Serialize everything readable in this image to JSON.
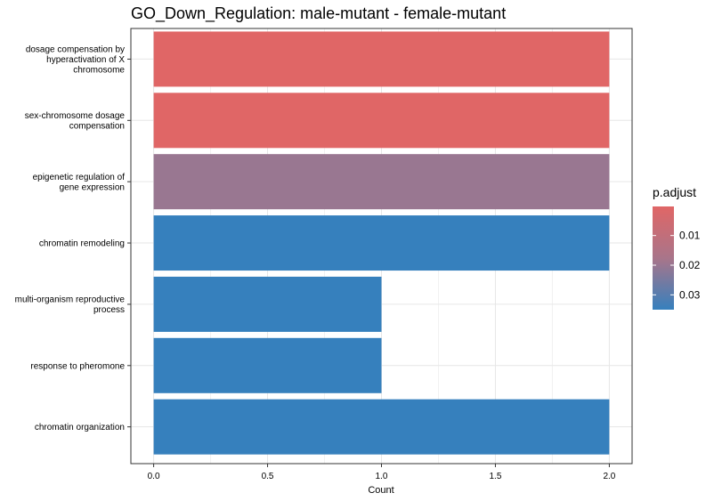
{
  "chart_data": {
    "type": "bar",
    "orientation": "horizontal",
    "title": "GO_Down_Regulation: male-mutant - female-mutant",
    "xlabel": "Count",
    "ylabel": "",
    "xlim": [
      -0.1,
      2.1
    ],
    "x_ticks": [
      "0.0",
      "0.5",
      "1.0",
      "1.5",
      "2.0"
    ],
    "x_tick_values": [
      0,
      0.5,
      1,
      1.5,
      2
    ],
    "categories": [
      [
        "dosage compensation by",
        "hyperactivation of X",
        "chromosome"
      ],
      [
        "sex-chromosome dosage",
        "compensation"
      ],
      [
        "epigenetic regulation of",
        "gene expression"
      ],
      [
        "chromatin remodeling"
      ],
      [
        "multi-organism reproductive",
        "process"
      ],
      [
        "response to pheromone"
      ],
      [
        "chromatin organization"
      ]
    ],
    "values": [
      2,
      2,
      2,
      2,
      1,
      1,
      2
    ],
    "p_adjust": [
      0.0002,
      0.0002,
      0.02,
      0.035,
      0.035,
      0.035,
      0.035
    ],
    "grid": true,
    "legend": {
      "title": "p.adjust",
      "position": "right",
      "ticks": [
        "0.01",
        "0.02",
        "0.03"
      ],
      "tick_values": [
        0.01,
        0.02,
        0.03
      ],
      "range": [
        0.0002,
        0.035
      ],
      "low_color": "#e06666",
      "high_color": "#3680bd"
    }
  }
}
